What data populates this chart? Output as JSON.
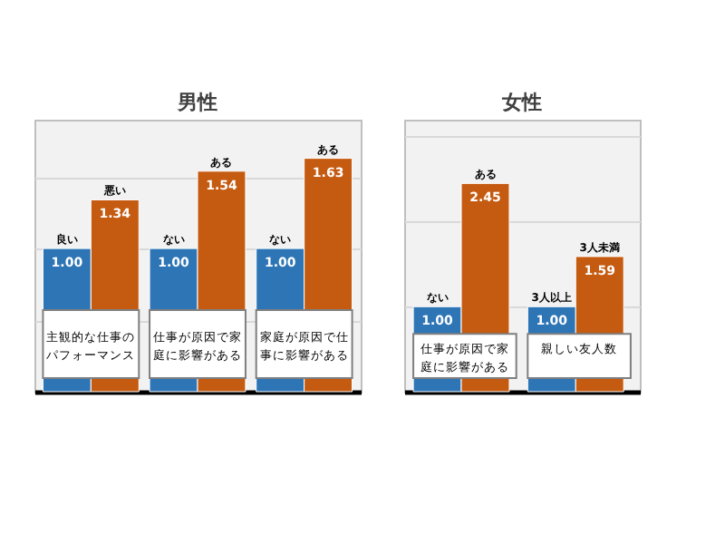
{
  "chart_data": [
    {
      "type": "bar",
      "title": "男性",
      "categories": [
        "主観的な仕事のパフォーマンス",
        "仕事が原因で家庭に影響がある",
        "家庭が原因で仕事に影響がある"
      ],
      "series": [
        {
          "color": "#2e75b6",
          "values": [
            1.0,
            1.0,
            1.0
          ],
          "value_labels": [
            "1.00",
            "1.00",
            "1.00"
          ]
        },
        {
          "color": "#c55a11",
          "values": [
            1.34,
            1.54,
            1.63
          ],
          "value_labels": [
            "1.34",
            "1.54",
            "1.63"
          ]
        }
      ],
      "annotations": [
        {
          "text": "良い",
          "x": "主観的な仕事のパフォーマンス",
          "y": 1.0
        },
        {
          "text": "悪い",
          "x": "主観的な仕事のパフォーマンス",
          "y": 1.34
        },
        {
          "text": "ない",
          "x": "仕事が原因で家庭に影響がある",
          "y": 1.0
        },
        {
          "text": "ある",
          "x": "仕事が原因で家庭に影響がある",
          "y": 1.54
        },
        {
          "text": "ない",
          "x": "家庭が原因で仕事に影響がある",
          "y": 1.0
        },
        {
          "text": "ある",
          "x": "家庭が原因で仕事に影響がある",
          "y": 1.63
        }
      ],
      "ylim": [
        0,
        1.9
      ],
      "grid": "y",
      "tick_labels": false
    },
    {
      "type": "bar",
      "title": "女性",
      "categories": [
        "仕事が原因で家庭に影響がある",
        "親しい友人数"
      ],
      "series": [
        {
          "color": "#2e75b6",
          "values": [
            1.0,
            1.0
          ],
          "value_labels": [
            "1.00",
            "1.00"
          ]
        },
        {
          "color": "#c55a11",
          "values": [
            2.45,
            1.59
          ],
          "value_labels": [
            "2.45",
            "1.59"
          ]
        }
      ],
      "annotations": [
        {
          "text": "ない",
          "x": "仕事が原因で家庭に影響がある",
          "y": 1.0
        },
        {
          "text": "ある",
          "x": "仕事が原因で家庭に影響がある",
          "y": 2.45
        },
        {
          "text": "3人以上",
          "x": "親しい友人数",
          "y": 1.0
        },
        {
          "text": "3人未満",
          "x": "親しい友人数",
          "y": 1.59
        }
      ],
      "ylim": [
        0,
        3.2
      ],
      "grid": "y",
      "tick_labels": false
    }
  ]
}
